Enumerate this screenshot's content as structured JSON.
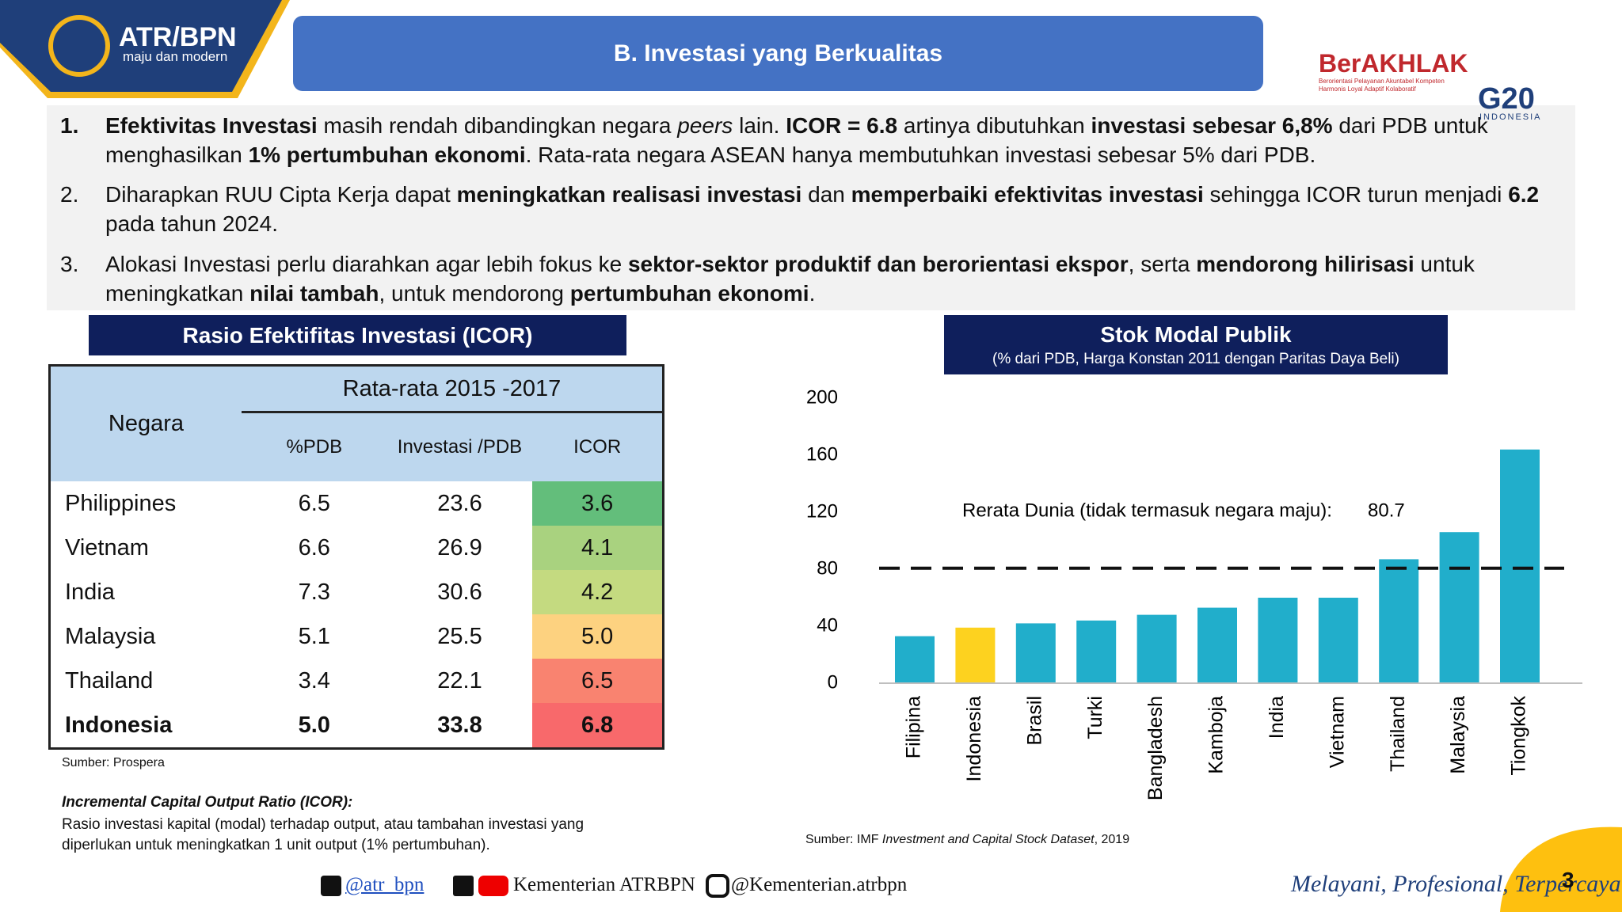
{
  "header": {
    "logo_title": "ATR/BPN",
    "logo_subtitle": "maju dan modern",
    "title": "B. Investasi yang Berkualitas",
    "brand": "BerAKHLAK",
    "brand_lines": [
      "Berorientasi Pelayanan Akuntabel Kompeten",
      "Harmonis Loyal Adaptif Kolaboratif"
    ],
    "g20": "G20",
    "g20_sub": "INDONESIA"
  },
  "bullets": [
    {
      "number": "1.",
      "bold_number": true,
      "runs": [
        {
          "text": "Efektivitas Investasi",
          "bold": true
        },
        {
          "text": " masih rendah dibandingkan negara "
        },
        {
          "text": "peers",
          "italic": true
        },
        {
          "text": " lain. "
        },
        {
          "text": "ICOR = 6.8",
          "bold": true
        },
        {
          "text": " artinya dibutuhkan "
        },
        {
          "text": "investasi sebesar 6,8%",
          "bold": true
        },
        {
          "text": " dari PDB untuk menghasilkan "
        },
        {
          "text": "1% pertumbuhan ekonomi",
          "bold": true
        },
        {
          "text": ". Rata-rata negara ASEAN hanya membutuhkan investasi sebesar 5% dari PDB."
        }
      ]
    },
    {
      "number": "2.",
      "runs": [
        {
          "text": "Diharapkan RUU Cipta Kerja dapat "
        },
        {
          "text": "meningkatkan realisasi investasi",
          "bold": true
        },
        {
          "text": " dan "
        },
        {
          "text": "memperbaiki efektivitas investasi",
          "bold": true
        },
        {
          "text": " sehingga ICOR turun menjadi "
        },
        {
          "text": "6.2",
          "bold": true
        },
        {
          "text": " pada tahun 2024."
        }
      ]
    },
    {
      "number": "3.",
      "runs": [
        {
          "text": "Alokasi Investasi perlu diarahkan agar lebih fokus ke "
        },
        {
          "text": "sektor-sektor produktif dan berorientasi ekspor",
          "bold": true
        },
        {
          "text": ", serta "
        },
        {
          "text": "mendorong hilirisasi",
          "bold": true
        },
        {
          "text": " untuk meningkatkan "
        },
        {
          "text": "nilai tambah",
          "bold": true
        },
        {
          "text": ", untuk mendorong "
        },
        {
          "text": "pertumbuhan ekonomi",
          "bold": true
        },
        {
          "text": "."
        }
      ]
    }
  ],
  "table": {
    "title": "Rasio Efektifitas Investasi (ICOR)",
    "row_header": "Negara",
    "group_header": "Rata-rata 2015 -2017",
    "columns": [
      "%PDB",
      "Investasi /PDB",
      "ICOR"
    ],
    "rows": [
      [
        "Philippines",
        "6.5",
        "23.6",
        "3.6"
      ],
      [
        "Vietnam",
        "6.6",
        "26.9",
        "4.1"
      ],
      [
        "India",
        "7.3",
        "30.6",
        "4.2"
      ],
      [
        "Malaysia",
        "5.1",
        "25.5",
        "5.0"
      ],
      [
        "Thailand",
        "3.4",
        "22.1",
        "6.5"
      ],
      [
        "Indonesia",
        "5.0",
        "33.8",
        "6.8"
      ]
    ],
    "icor_colors": [
      "#63be7b",
      "#a9d27f",
      "#c4da80",
      "#fdd280",
      "#f98370",
      "#f8696b"
    ],
    "bold_row": 5,
    "source": "Sumber: Prospera",
    "note_title": "Incremental Capital Output Ratio (ICOR):",
    "note_text": "Rasio investasi kapital (modal) terhadap output, atau tambahan investasi yang diperlukan untuk meningkatkan 1 unit output (1% pertumbuhan)."
  },
  "chart_data": {
    "type": "bar",
    "title": "Stok Modal Publik",
    "subtitle": "(% dari PDB, Harga Konstan 2011 dengan Paritas Daya Beli)",
    "categories": [
      "Filipina",
      "Indonesia",
      "Brasil",
      "Turki",
      "Bangladesh",
      "Kamboja",
      "India",
      "Vietnam",
      "Thailand",
      "Malaysia",
      "Tiongkok"
    ],
    "values": [
      33,
      39,
      42,
      44,
      48,
      53,
      60,
      60,
      87,
      106,
      164
    ],
    "colors": [
      "#21aecb",
      "#fdd21f",
      "#21aecb",
      "#21aecb",
      "#21aecb",
      "#21aecb",
      "#21aecb",
      "#21aecb",
      "#21aecb",
      "#21aecb",
      "#21aecb"
    ],
    "ylim": [
      0,
      200
    ],
    "yticks": [
      0,
      40,
      80,
      120,
      160,
      200
    ],
    "reference": {
      "label": "Rerata Dunia (tidak termasuk negara maju):",
      "value": 80.7
    },
    "source": [
      {
        "text": "Sumber: IMF "
      },
      {
        "text": "Investment and Capital Stock Dataset",
        "italic": true
      },
      {
        "text": ", 2019"
      }
    ]
  },
  "footer": {
    "motto": "Melayani, Profesional, Terpercaya",
    "twitter": "@atr_bpn",
    "facebook": "Kementerian ATRBPN",
    "instagram": "@Kementerian.atrbpn",
    "page": "3"
  }
}
